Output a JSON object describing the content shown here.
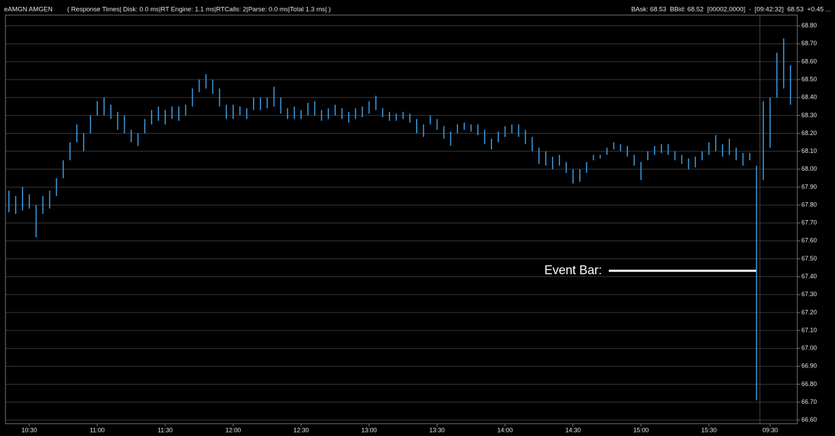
{
  "chart_data": {
    "type": "range",
    "title": "eAMGN AMGEN",
    "subtitle": "( Response Times| Disk: 0.0 ms|RT Engine: 1.1 ms|RTCalls: 2|Parse: 0.0 ms|Total 1.3 ms| )",
    "status": "BAsk: 68.53  BBid: 68.52  [00002,0000]  -  [09:42:32]  68.53  +0.45 ...",
    "annotation": "Event Bar:",
    "categories": [
      null,
      null,
      null,
      "10:30",
      null,
      null,
      null,
      null,
      null,
      null,
      null,
      null,
      null,
      "11:00",
      null,
      null,
      null,
      null,
      null,
      null,
      null,
      null,
      null,
      "11:30",
      null,
      null,
      null,
      null,
      null,
      null,
      null,
      null,
      null,
      "12:00",
      null,
      null,
      null,
      null,
      null,
      null,
      null,
      null,
      null,
      "12:30",
      null,
      null,
      null,
      null,
      null,
      null,
      null,
      null,
      null,
      "13:00",
      null,
      null,
      null,
      null,
      null,
      null,
      null,
      null,
      null,
      "13:30",
      null,
      null,
      null,
      null,
      null,
      null,
      null,
      null,
      null,
      "14:00",
      null,
      null,
      null,
      null,
      null,
      null,
      null,
      null,
      null,
      "14:30",
      null,
      null,
      null,
      null,
      null,
      null,
      null,
      null,
      null,
      "15:00",
      null,
      null,
      null,
      null,
      null,
      null,
      null,
      null,
      null,
      "15:30",
      null,
      null,
      null,
      null,
      null,
      null,
      null,
      null,
      "09:30",
      null,
      null,
      null
    ],
    "series": [
      {
        "color": "#3d9be0",
        "low": [
          67.76,
          67.75,
          67.77,
          67.78,
          67.62,
          67.75,
          67.78,
          67.85,
          67.95,
          68.05,
          68.15,
          68.1,
          68.2,
          68.3,
          68.3,
          68.28,
          68.22,
          68.2,
          68.15,
          68.13,
          68.2,
          68.25,
          68.27,
          68.25,
          68.28,
          68.27,
          68.3,
          68.35,
          68.43,
          68.45,
          68.42,
          68.35,
          68.28,
          68.28,
          68.3,
          68.28,
          68.33,
          68.33,
          68.34,
          68.35,
          68.31,
          68.28,
          68.28,
          68.28,
          68.3,
          68.3,
          68.27,
          68.28,
          68.3,
          68.28,
          68.26,
          68.28,
          68.29,
          68.31,
          68.33,
          68.29,
          68.27,
          68.27,
          68.28,
          68.26,
          68.2,
          68.18,
          68.25,
          68.22,
          68.17,
          68.13,
          68.2,
          68.22,
          68.21,
          68.19,
          68.14,
          68.11,
          68.15,
          68.18,
          68.2,
          68.18,
          68.14,
          68.1,
          68.03,
          68.02,
          68.0,
          68.02,
          67.98,
          67.92,
          67.93,
          67.98,
          68.05,
          68.06,
          68.08,
          68.11,
          68.1,
          68.07,
          68.02,
          67.94,
          68.05,
          68.08,
          68.09,
          68.08,
          68.05,
          68.03,
          68.0,
          68.01,
          68.05,
          68.08,
          68.1,
          68.07,
          68.08,
          68.05,
          68.02,
          68.05,
          66.71,
          67.94,
          68.12,
          68.4,
          68.45,
          68.36
        ],
        "high": [
          67.88,
          67.85,
          67.9,
          67.86,
          67.8,
          67.85,
          67.88,
          67.95,
          68.05,
          68.15,
          68.25,
          68.2,
          68.3,
          68.38,
          68.4,
          68.36,
          68.32,
          68.3,
          68.22,
          68.2,
          68.28,
          68.33,
          68.35,
          68.33,
          68.35,
          68.35,
          68.36,
          68.45,
          68.5,
          68.53,
          68.5,
          68.45,
          68.36,
          68.36,
          68.35,
          68.34,
          68.4,
          68.4,
          68.4,
          68.46,
          68.4,
          68.34,
          68.35,
          68.33,
          68.37,
          68.38,
          68.33,
          68.34,
          68.36,
          68.34,
          68.32,
          68.34,
          68.35,
          68.38,
          68.41,
          68.34,
          68.32,
          68.31,
          68.32,
          68.31,
          68.28,
          68.25,
          68.3,
          68.28,
          68.24,
          68.21,
          68.25,
          68.26,
          68.25,
          68.25,
          68.22,
          68.17,
          68.21,
          68.24,
          68.25,
          68.25,
          68.22,
          68.18,
          68.12,
          68.1,
          68.07,
          68.08,
          68.04,
          68.0,
          68.0,
          68.04,
          68.08,
          68.08,
          68.12,
          68.15,
          68.14,
          68.13,
          68.08,
          68.04,
          68.1,
          68.13,
          68.14,
          68.14,
          68.1,
          68.08,
          68.06,
          68.07,
          68.1,
          68.15,
          68.19,
          68.14,
          68.17,
          68.12,
          68.09,
          68.09,
          68.02,
          68.38,
          68.4,
          68.65,
          68.73,
          68.58
        ]
      }
    ],
    "ylim": [
      66.58,
      68.86
    ],
    "yticks": [
      {
        "value": 66.6,
        "label": "66.60"
      },
      {
        "value": 66.7,
        "label": "66.70"
      },
      {
        "value": 66.8,
        "label": "66.80"
      },
      {
        "value": 66.9,
        "label": "66.90"
      },
      {
        "value": 67.0,
        "label": "67.00"
      },
      {
        "value": 67.1,
        "label": "67.10"
      },
      {
        "value": 67.2,
        "label": "67.20"
      },
      {
        "value": 67.3,
        "label": "67.30"
      },
      {
        "value": 67.4,
        "label": "67.40"
      },
      {
        "value": 67.5,
        "label": "67.50"
      },
      {
        "value": 67.6,
        "label": "67.60"
      },
      {
        "value": 67.7,
        "label": "67.70"
      },
      {
        "value": 67.8,
        "label": "67.80"
      },
      {
        "value": 67.9,
        "label": "67.90"
      },
      {
        "value": 68.0,
        "label": "68.00"
      },
      {
        "value": 68.1,
        "label": "68.10"
      },
      {
        "value": 68.2,
        "label": "68.20"
      },
      {
        "value": 68.3,
        "label": "68.30"
      },
      {
        "value": 68.4,
        "label": "68.40"
      },
      {
        "value": 68.5,
        "label": "68.50"
      },
      {
        "value": 68.6,
        "label": "68.60"
      },
      {
        "value": 68.7,
        "label": "68.70"
      },
      {
        "value": 68.8,
        "label": "68.80"
      }
    ],
    "grid": true
  }
}
